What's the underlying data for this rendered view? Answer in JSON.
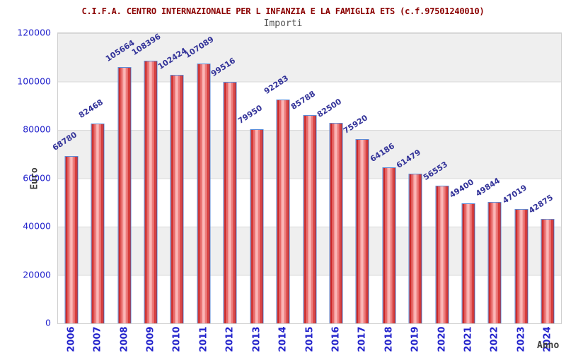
{
  "header": {
    "title": "C.I.F.A. CENTRO INTERNAZIONALE PER L INFANZIA E LA FAMIGLIA ETS (c.f.97501240010)",
    "subtitle": "Importi"
  },
  "chart_data": {
    "type": "bar",
    "title": "C.I.F.A. CENTRO INTERNAZIONALE PER L INFANZIA E LA FAMIGLIA ETS (c.f.97501240010)",
    "subtitle": "Importi",
    "xlabel": "Anno",
    "ylabel": "Euro",
    "categories": [
      "2006",
      "2007",
      "2008",
      "2009",
      "2010",
      "2011",
      "2012",
      "2013",
      "2014",
      "2015",
      "2016",
      "2017",
      "2018",
      "2019",
      "2020",
      "2021",
      "2022",
      "2023",
      "2024"
    ],
    "values": [
      68780,
      82468,
      105664,
      108396,
      102424,
      107089,
      99516,
      79950,
      92283,
      85788,
      82500,
      75920,
      64186,
      61479,
      56553,
      49400,
      49844,
      47019,
      42875
    ],
    "ylim": [
      0,
      120000
    ],
    "yticks": [
      0,
      20000,
      40000,
      60000,
      80000,
      100000,
      120000
    ],
    "grid": true,
    "legend_position": "none",
    "colors": {
      "bar_fill": "#cc1111",
      "bar_fill_highlight": "#ffbcbc",
      "bar_border": "#5b8dd9",
      "value_label": "#333399",
      "tick_label": "#2323cc",
      "title": "#8b0000",
      "subtitle": "#555555",
      "axis_title": "#3c3c3c",
      "band_gray": "#efefef",
      "band_white": "#ffffff"
    }
  }
}
